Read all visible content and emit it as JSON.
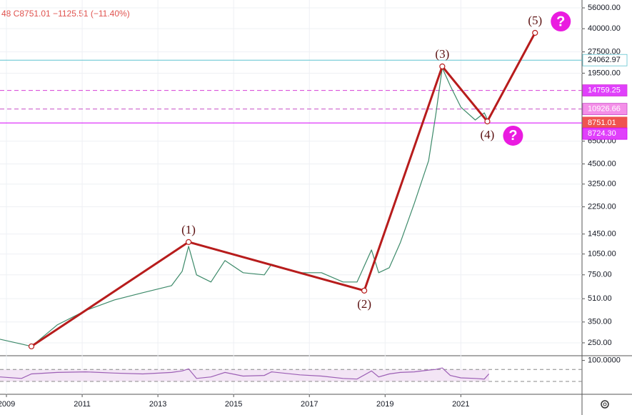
{
  "chart_data": {
    "type": "line",
    "legend_text": "48  C8751.01  −1125.51 (−11.40%)",
    "log_scale": true,
    "grid": true,
    "xlim": [
      2008.83,
      2024.2
    ],
    "xticks": [
      2009,
      2011,
      2013,
      2015,
      2017,
      2019,
      2021
    ],
    "ylim": [
      203,
      63600
    ],
    "yticks": [
      {
        "value": 56000,
        "label": "56000.00"
      },
      {
        "value": 40000,
        "label": "40000.00"
      },
      {
        "value": 27500,
        "label": "27500.00"
      },
      {
        "value": 19500,
        "label": "19500.00"
      },
      {
        "value": 6500,
        "label": "6500.00"
      },
      {
        "value": 4500,
        "label": "4500.00"
      },
      {
        "value": 3250,
        "label": "3250.00"
      },
      {
        "value": 2250,
        "label": "2250.00"
      },
      {
        "value": 1450,
        "label": "1450.00"
      },
      {
        "value": 1050,
        "label": "1050.00"
      },
      {
        "value": 750,
        "label": "750.00"
      },
      {
        "value": 510,
        "label": "510.00"
      },
      {
        "value": 350,
        "label": "350.00"
      },
      {
        "value": 250,
        "label": "250.00"
      }
    ],
    "series": [
      {
        "color": "#3d8a6a",
        "x": [
          2008.83,
          2009.4,
          2009.66,
          2010.34,
          2011.09,
          2011.85,
          2012.6,
          2013.36,
          2013.64,
          2013.81,
          2014.02,
          2014.4,
          2014.77,
          2015.25,
          2015.81,
          2016.0,
          2016.75,
          2017.32,
          2017.89,
          2018.26,
          2018.64,
          2018.83,
          2019.11,
          2019.4,
          2019.77,
          2020.15,
          2020.34,
          2020.51,
          2020.72,
          2021.0,
          2021.38,
          2021.62,
          2021.74
        ],
        "values": [
          265,
          245,
          236,
          334,
          421,
          500,
          562,
          630,
          794,
          1189,
          750,
          668,
          944,
          776,
          750,
          890,
          776,
          776,
          668,
          668,
          1122,
          776,
          841,
          1259,
          2373,
          4746,
          10036,
          21250,
          15930,
          11270,
          9150,
          10270,
          8751
        ]
      },
      {
        "color": "#b71c1c",
        "x": [
          2009.66,
          2013.81,
          2018.45,
          2020.51,
          2021.7,
          2022.96
        ],
        "values": [
          236,
          1274,
          581,
          21750,
          8945,
          37400
        ],
        "point_labels": [
          null,
          "(1)",
          "(2)",
          "(3)",
          "(4)",
          "(5)"
        ]
      }
    ],
    "question_mark": "?",
    "price_lines": [
      {
        "value": 24062.97,
        "label": "24062.97",
        "color": "#5fc4d0",
        "badge": "#ffffff",
        "text_color": "#131722",
        "style": "solid"
      },
      {
        "value": 14759.25,
        "label": "14759.25",
        "color": "#d63fd6",
        "badge": "#e040fb",
        "text_color": "#ffffff",
        "style": "dashed"
      },
      {
        "value": 10926.66,
        "label": "10926.66",
        "color": "#c74fc7",
        "badge": "#f48fe8",
        "text_color": "#ffffff",
        "style": "dashed"
      },
      {
        "value": 8751.01,
        "label": "8751.01",
        "color": "#ef5350",
        "badge": "#ef5350",
        "text_color": "#ffffff",
        "style": "none"
      },
      {
        "value": 8724.3,
        "label": "8724.30",
        "color": "#d500f9",
        "badge": "#e040fb",
        "text_color": "#ffffff",
        "style": "solid"
      }
    ],
    "rsi": {
      "color": "#9c5fb5",
      "ylim": [
        -8,
        111
      ],
      "yticks": [
        {
          "value": 100,
          "label": "100.0000"
        }
      ],
      "bands": [
        70,
        30
      ],
      "values": [
        45,
        40,
        55,
        60,
        62,
        58,
        55,
        60,
        65,
        72,
        40,
        45,
        60,
        48,
        50,
        62,
        52,
        48,
        40,
        38,
        65,
        45,
        55,
        60,
        62,
        68,
        70,
        75,
        50,
        42,
        40,
        38,
        55
      ]
    }
  }
}
